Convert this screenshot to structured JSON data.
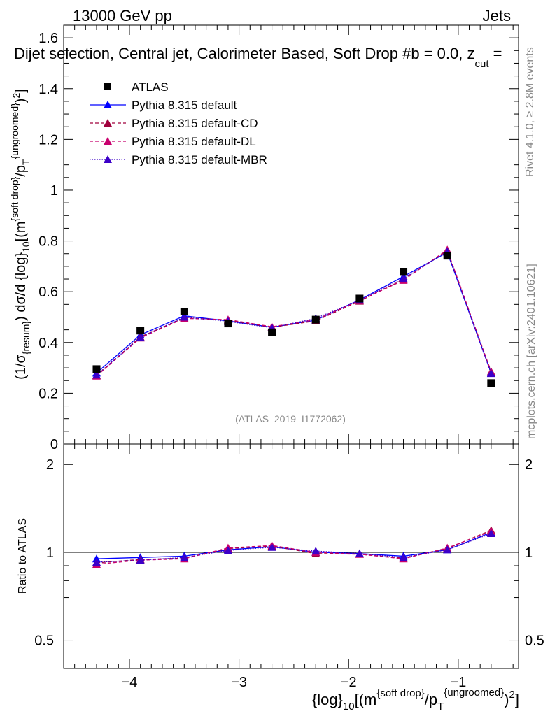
{
  "header": {
    "energy_label": "13000 GeV pp",
    "process_label": "Jets",
    "selection_title": "Dijet selection, Central jet, Calorimeter Based, Soft Drop #b = 0.0, z",
    "selection_sub": "cut",
    "selection_tail": " ="
  },
  "side_text": {
    "rivet": "Rivet 4.1.0, ≥ 2.8M events",
    "mcplots": "mcplots.cern.ch [arXiv:2401.10621]"
  },
  "watermark": "(ATLAS_2019_I1772062)",
  "colors": {
    "atlas": "#000000",
    "default": "#0000ff",
    "default_cd": "#a0003c",
    "default_dl": "#c8006e",
    "default_mbr": "#3c00c8"
  },
  "chart_data": [
    {
      "type": "line",
      "panel": "main",
      "title": "Dijet selection, Central jet, Calorimeter Based, Soft Drop #b = 0.0, z_cut =",
      "ylabel": "(1/σ_{resum}) dσ/d {log}_10[(m^{soft drop}/p_T^{ungroomed})^2]",
      "xlim": [
        -4.6,
        -0.45
      ],
      "ylim": [
        0,
        1.65
      ],
      "yticks": [
        0,
        0.2,
        0.4,
        0.6,
        0.8,
        1,
        1.2,
        1.4,
        1.6
      ],
      "ytick_labels": [
        "0",
        "0.2",
        "0.4",
        "0.6",
        "0.8",
        "1",
        "1.2",
        "1.4",
        "1.6"
      ],
      "x": [
        -4.3,
        -3.9,
        -3.5,
        -3.1,
        -2.7,
        -2.3,
        -1.9,
        -1.5,
        -1.1,
        -0.7
      ],
      "series": [
        {
          "name": "ATLAS",
          "style": "data",
          "values": [
            0.295,
            0.447,
            0.522,
            0.475,
            0.44,
            0.49,
            0.573,
            0.678,
            0.742,
            0.24
          ]
        },
        {
          "name": "Pythia 8.315 default",
          "style": "solid",
          "values": [
            0.28,
            0.43,
            0.505,
            0.485,
            0.46,
            0.488,
            0.568,
            0.66,
            0.755,
            0.28
          ]
        },
        {
          "name": "Pythia 8.315 default-CD",
          "style": "dash",
          "values": [
            0.27,
            0.422,
            0.497,
            0.488,
            0.46,
            0.485,
            0.563,
            0.648,
            0.762,
            0.285
          ]
        },
        {
          "name": "Pythia 8.315 default-DL",
          "style": "dash",
          "values": [
            0.268,
            0.418,
            0.495,
            0.49,
            0.462,
            0.49,
            0.565,
            0.645,
            0.765,
            0.283
          ]
        },
        {
          "name": "Pythia 8.315 default-MBR",
          "style": "dot",
          "values": [
            0.272,
            0.42,
            0.5,
            0.483,
            0.458,
            0.495,
            0.567,
            0.652,
            0.758,
            0.278
          ]
        }
      ]
    },
    {
      "type": "line",
      "panel": "ratio",
      "ylabel": "Ratio to ATLAS",
      "xlabel": "{log}_10[(m^{soft drop}/p_T^{ungroomed})^2]",
      "xlim": [
        -4.6,
        -0.45
      ],
      "ylim": [
        0.4,
        2.35
      ],
      "yscale": "log",
      "yticks": [
        0.5,
        1,
        2
      ],
      "ytick_labels": [
        "0.5",
        "1",
        "2"
      ],
      "xticks": [
        -4,
        -3,
        -2,
        -1
      ],
      "xtick_labels": [
        "−4",
        "−3",
        "−2",
        "−1"
      ],
      "x": [
        -4.3,
        -3.9,
        -3.5,
        -3.1,
        -2.7,
        -2.3,
        -1.9,
        -1.5,
        -1.1,
        -0.7
      ],
      "series": [
        {
          "name": "Pythia 8.315 default",
          "style": "solid",
          "values": [
            0.95,
            0.96,
            0.97,
            1.02,
            1.045,
            1.0,
            0.99,
            0.97,
            1.02,
            1.17
          ]
        },
        {
          "name": "Pythia 8.315 default-CD",
          "style": "dash",
          "values": [
            0.92,
            0.945,
            0.955,
            1.03,
            1.05,
            0.99,
            0.985,
            0.955,
            1.03,
            1.19
          ]
        },
        {
          "name": "Pythia 8.315 default-DL",
          "style": "dash",
          "values": [
            0.91,
            0.94,
            0.95,
            1.035,
            1.055,
            1.0,
            0.985,
            0.95,
            1.035,
            1.18
          ]
        },
        {
          "name": "Pythia 8.315 default-MBR",
          "style": "dot",
          "values": [
            0.925,
            0.94,
            0.96,
            1.015,
            1.04,
            1.01,
            0.99,
            0.96,
            1.02,
            1.16
          ]
        }
      ]
    }
  ]
}
